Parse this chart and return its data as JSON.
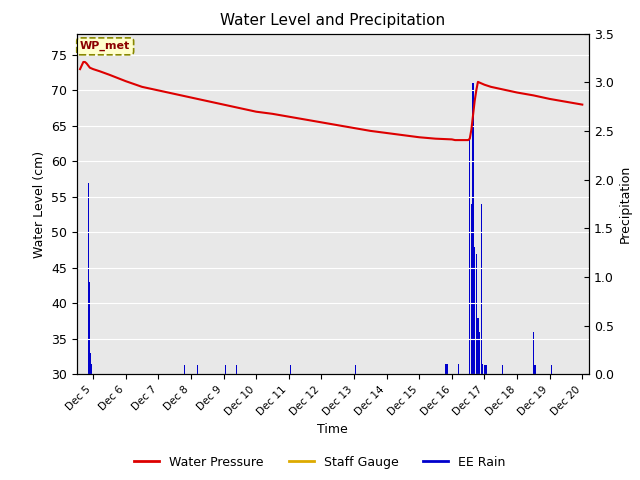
{
  "title": "Water Level and Precipitation",
  "xlabel": "Time",
  "ylabel_left": "Water Level (cm)",
  "ylabel_right": "Precipitation",
  "annotation": "WP_met",
  "ylim_left": [
    30,
    78
  ],
  "ylim_right": [
    0.0,
    3.5
  ],
  "yticks_left": [
    30,
    35,
    40,
    45,
    50,
    55,
    60,
    65,
    70,
    75
  ],
  "yticks_right": [
    0.0,
    0.5,
    1.0,
    1.5,
    2.0,
    2.5,
    3.0,
    3.5
  ],
  "bg_color": "#e8e8e8",
  "xlim": [
    4.5,
    20.2
  ],
  "legend": [
    {
      "label": "Water Pressure",
      "color": "#dd0000",
      "linestyle": "-"
    },
    {
      "label": "Staff Gauge",
      "color": "#ddaa00",
      "linestyle": "-"
    },
    {
      "label": "EE Rain",
      "color": "#0000cc",
      "linestyle": "-"
    }
  ],
  "water_pressure": {
    "x": [
      4.6,
      4.65,
      4.7,
      4.75,
      4.8,
      4.85,
      4.9,
      5.0,
      5.2,
      5.5,
      6.0,
      6.5,
      7.0,
      7.5,
      8.0,
      8.5,
      9.0,
      9.5,
      10.0,
      10.5,
      11.0,
      11.5,
      12.0,
      12.5,
      13.0,
      13.5,
      14.0,
      14.5,
      15.0,
      15.5,
      16.0,
      16.1,
      16.2,
      16.3,
      16.4,
      16.5,
      16.55,
      16.6,
      16.65,
      16.7,
      16.75,
      16.8,
      17.0,
      17.2,
      17.5,
      18.0,
      18.5,
      19.0,
      19.5,
      20.0
    ],
    "y": [
      73.0,
      73.5,
      74.0,
      74.0,
      73.8,
      73.5,
      73.2,
      73.0,
      72.7,
      72.2,
      71.3,
      70.5,
      70.0,
      69.5,
      69.0,
      68.5,
      68.0,
      67.5,
      67.0,
      66.7,
      66.3,
      65.9,
      65.5,
      65.1,
      64.7,
      64.3,
      64.0,
      63.7,
      63.4,
      63.2,
      63.1,
      63.0,
      63.0,
      63.0,
      63.0,
      63.0,
      63.2,
      64.5,
      66.5,
      68.5,
      70.0,
      71.2,
      70.8,
      70.5,
      70.2,
      69.7,
      69.3,
      68.8,
      68.4,
      68.0
    ]
  },
  "rain_events": [
    {
      "x": 4.85,
      "height": 57
    },
    {
      "x": 4.9,
      "height": 43
    },
    {
      "x": 4.92,
      "height": 33
    },
    {
      "x": 4.95,
      "height": 31.5
    },
    {
      "x": 7.8,
      "height": 31.3
    },
    {
      "x": 8.2,
      "height": 31.3
    },
    {
      "x": 9.05,
      "height": 31.3
    },
    {
      "x": 9.4,
      "height": 31.3
    },
    {
      "x": 11.05,
      "height": 31.3
    },
    {
      "x": 13.05,
      "height": 31.3
    },
    {
      "x": 15.8,
      "height": 31.4
    },
    {
      "x": 15.85,
      "height": 31.4
    },
    {
      "x": 16.2,
      "height": 31.4
    },
    {
      "x": 16.55,
      "height": 63
    },
    {
      "x": 16.6,
      "height": 54
    },
    {
      "x": 16.65,
      "height": 71
    },
    {
      "x": 16.7,
      "height": 48
    },
    {
      "x": 16.75,
      "height": 47
    },
    {
      "x": 16.8,
      "height": 38
    },
    {
      "x": 16.85,
      "height": 36
    },
    {
      "x": 16.9,
      "height": 54
    },
    {
      "x": 16.95,
      "height": 31.5
    },
    {
      "x": 17.0,
      "height": 31.3
    },
    {
      "x": 17.05,
      "height": 31.3
    },
    {
      "x": 17.55,
      "height": 31.3
    },
    {
      "x": 18.5,
      "height": 36
    },
    {
      "x": 18.55,
      "height": 31.3
    },
    {
      "x": 19.05,
      "height": 31.3
    }
  ],
  "xtick_positions": [
    5,
    6,
    7,
    8,
    9,
    10,
    11,
    12,
    13,
    14,
    15,
    16,
    17,
    18,
    19,
    20
  ],
  "xtick_labels": [
    "Dec 5",
    "Dec 6",
    "Dec 7",
    "Dec 8",
    "Dec 9",
    "Dec 10",
    "Dec 11",
    "Dec 12",
    "Dec 13",
    "Dec 14",
    "Dec 15",
    "Dec 16",
    "Dec 17",
    "Dec 18",
    "Dec 19",
    "Dec 20"
  ]
}
